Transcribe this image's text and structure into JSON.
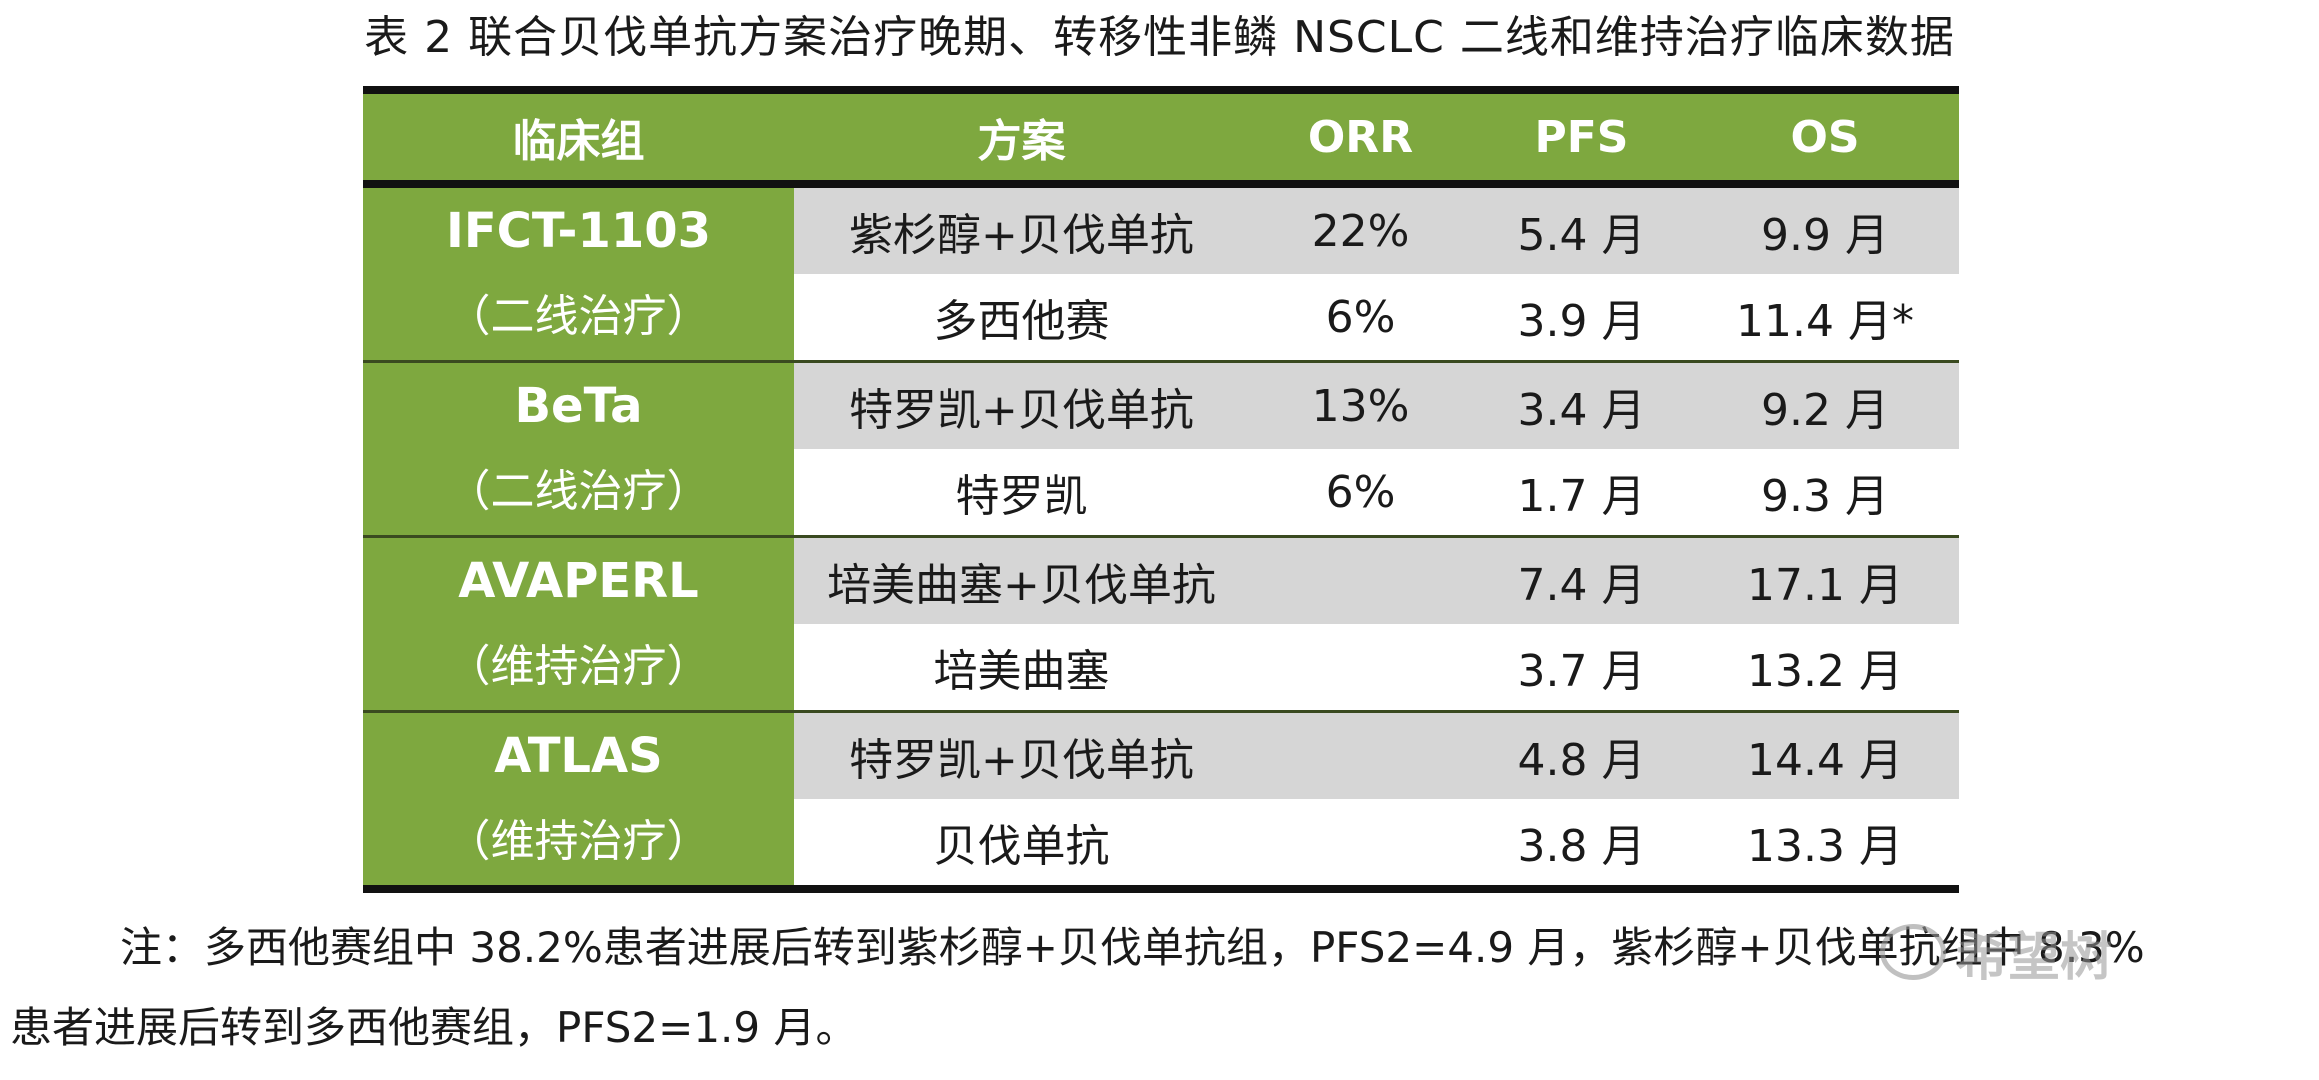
{
  "caption": "表 2 联合贝伐单抗方案治疗晚期、转移性非鳞 NSCLC 二线和维持治疗临床数据",
  "table": {
    "headers": [
      "临床组",
      "方案",
      "ORR",
      "PFS",
      "OS"
    ],
    "groups": [
      {
        "name": "IFCT-1103",
        "sub": "（二线治疗）",
        "rows": [
          {
            "regimen": "紫杉醇+贝伐单抗",
            "orr": "22%",
            "pfs": "5.4 月",
            "os": "9.9 月"
          },
          {
            "regimen": "多西他赛",
            "orr": "6%",
            "pfs": "3.9 月",
            "os": "11.4 月*"
          }
        ]
      },
      {
        "name": "BeTa",
        "sub": "（二线治疗）",
        "rows": [
          {
            "regimen": "特罗凯+贝伐单抗",
            "orr": "13%",
            "pfs": "3.4 月",
            "os": "9.2 月"
          },
          {
            "regimen": "特罗凯",
            "orr": "6%",
            "pfs": "1.7 月",
            "os": "9.3 月"
          }
        ]
      },
      {
        "name": "AVAPERL",
        "sub": "（维持治疗）",
        "rows": [
          {
            "regimen": "培美曲塞+贝伐单抗",
            "orr": "",
            "pfs": "7.4 月",
            "os": "17.1 月"
          },
          {
            "regimen": "培美曲塞",
            "orr": "",
            "pfs": "3.7 月",
            "os": "13.2 月"
          }
        ]
      },
      {
        "name": "ATLAS",
        "sub": "（维持治疗）",
        "rows": [
          {
            "regimen": "特罗凯+贝伐单抗",
            "orr": "",
            "pfs": "4.8 月",
            "os": "14.4 月"
          },
          {
            "regimen": "贝伐单抗",
            "orr": "",
            "pfs": "3.8 月",
            "os": "13.3 月"
          }
        ]
      }
    ]
  },
  "note": {
    "line1": "注：多西他赛组中 38.2%患者进展后转到紫杉醇+贝伐单抗组，PFS2=4.9 月，紫杉醇+贝伐单抗组中 8.3%",
    "line2": "患者进展后转到多西他赛组，PFS2=1.9 月。"
  },
  "watermark": {
    "text": "希望树",
    "icon": "wechat-icon"
  },
  "colors": {
    "header_green": "#7ea83f",
    "row_gray": "#d6d6d6",
    "rule": "#111111"
  }
}
